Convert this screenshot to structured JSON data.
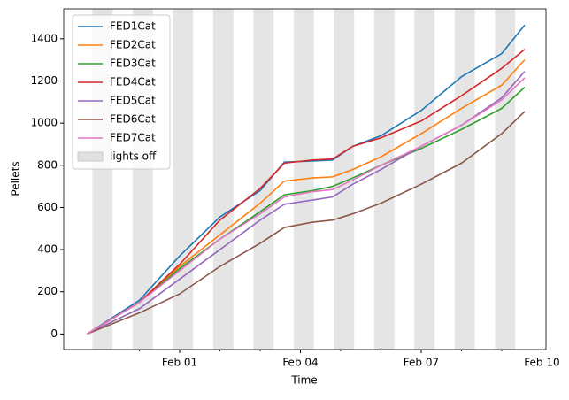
{
  "chart_data": {
    "type": "line",
    "xlabel": "Time",
    "ylabel": "Pellets",
    "x": [
      -1.3,
      0,
      1,
      2,
      3,
      3.6,
      4.3,
      4.8,
      5.3,
      6,
      7,
      8,
      9,
      9.57
    ],
    "series": [
      {
        "name": "FED1Cat",
        "color": "#1f77b4",
        "values": [
          0,
          160,
          370,
          555,
          680,
          815,
          820,
          825,
          890,
          940,
          1060,
          1220,
          1330,
          1465
        ]
      },
      {
        "name": "FED2Cat",
        "color": "#ff7f0e",
        "values": [
          0,
          150,
          320,
          470,
          620,
          725,
          740,
          745,
          780,
          840,
          950,
          1070,
          1180,
          1300
        ]
      },
      {
        "name": "FED3Cat",
        "color": "#2ca02c",
        "values": [
          0,
          150,
          310,
          450,
          580,
          660,
          680,
          700,
          740,
          800,
          880,
          970,
          1070,
          1170
        ]
      },
      {
        "name": "FED4Cat",
        "color": "#d62728",
        "values": [
          0,
          150,
          330,
          540,
          690,
          810,
          825,
          830,
          890,
          930,
          1010,
          1130,
          1260,
          1350
        ]
      },
      {
        "name": "FED5Cat",
        "color": "#9467bd",
        "values": [
          0,
          120,
          260,
          400,
          540,
          615,
          635,
          650,
          710,
          780,
          890,
          990,
          1120,
          1245
        ]
      },
      {
        "name": "FED6Cat",
        "color": "#8c564b",
        "values": [
          0,
          100,
          190,
          320,
          430,
          505,
          530,
          540,
          570,
          620,
          710,
          810,
          950,
          1055
        ]
      },
      {
        "name": "FED7Cat",
        "color": "#e377c2",
        "values": [
          0,
          150,
          300,
          450,
          570,
          650,
          675,
          685,
          730,
          800,
          890,
          990,
          1110,
          1215
        ]
      }
    ],
    "lights_off": {
      "name": "lights off",
      "color": "#e0e0e0",
      "spans": [
        [
          -1.167,
          -0.667
        ],
        [
          -0.167,
          0.333
        ],
        [
          0.833,
          1.333
        ],
        [
          1.833,
          2.333
        ],
        [
          2.833,
          3.333
        ],
        [
          3.833,
          4.333
        ],
        [
          4.833,
          5.333
        ],
        [
          5.833,
          6.333
        ],
        [
          6.833,
          7.333
        ],
        [
          7.833,
          8.333
        ],
        [
          8.833,
          9.333
        ]
      ]
    },
    "xlim": [
      -1.88,
      10.1
    ],
    "xticks": [
      {
        "value": 1,
        "label": "Feb 01"
      },
      {
        "value": 4,
        "label": "Feb 04"
      },
      {
        "value": 7,
        "label": "Feb 07"
      },
      {
        "value": 10,
        "label": "Feb 10"
      }
    ],
    "xminorticks": [
      0,
      2,
      3,
      5,
      6,
      8,
      9
    ],
    "ylim": [
      -74,
      1542
    ],
    "yticks": [
      0,
      200,
      400,
      600,
      800,
      1000,
      1200,
      1400
    ],
    "legend": "upper left"
  }
}
